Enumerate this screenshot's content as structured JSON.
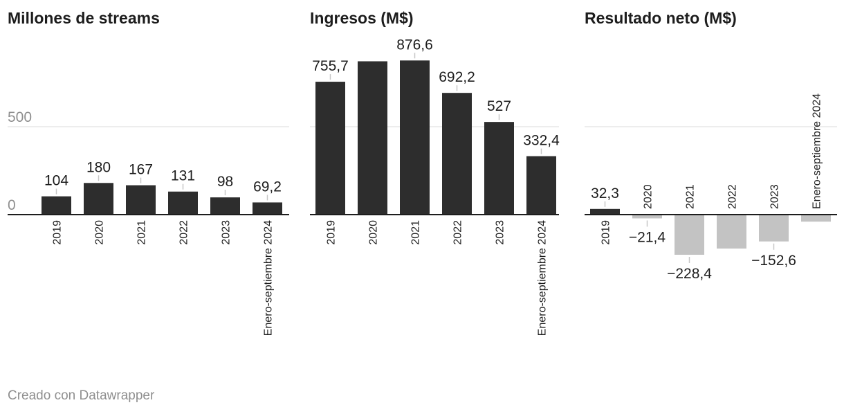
{
  "colors": {
    "bar_dark": "#2d2d2d",
    "bar_negative": "#c3c3c3",
    "gridline": "#e2e2e2",
    "baseline": "#1d1d1d",
    "connector": "#c7c7c7"
  },
  "footer": {
    "credit": "Creado con Datawrapper"
  },
  "chart_data": [
    {
      "type": "bar",
      "title": "Millones de streams",
      "categories": [
        "2019",
        "2020",
        "2021",
        "2022",
        "2023",
        "Enero-septiembre 2024"
      ],
      "values": [
        104,
        180,
        167,
        131,
        98,
        69.2
      ],
      "value_labels": [
        "104",
        "180",
        "167",
        "131",
        "98",
        "69,2"
      ],
      "ylim": [
        0,
        700
      ],
      "y_ticks": [
        0,
        500
      ],
      "y_tick_labels": [
        "0",
        "500"
      ],
      "grid": true
    },
    {
      "type": "bar",
      "title": "Ingresos (M$)",
      "categories": [
        "2019",
        "2020",
        "2021",
        "2022",
        "2023",
        "Enero-septiembre 2024"
      ],
      "values": [
        755.7,
        872,
        876.6,
        692.2,
        527,
        332.4
      ],
      "value_labels": [
        "755,7",
        "",
        "876,6",
        "692,2",
        "527",
        "332,4"
      ],
      "ylim": [
        0,
        1200
      ],
      "y_ticks": [
        0,
        500
      ],
      "grid": true
    },
    {
      "type": "bar",
      "title": "Resultado neto (M$)",
      "categories": [
        "2019",
        "2020",
        "2021",
        "2022",
        "2023",
        "Enero-septiembre 2024"
      ],
      "values": [
        32.3,
        -21.4,
        -228.4,
        -193,
        -152.6,
        -40
      ],
      "value_labels": [
        "32,3",
        "−21,4",
        "−228,4",
        "",
        "−152,6",
        ""
      ],
      "ylim": [
        -1175,
        700
      ],
      "y_ticks": [
        0,
        500
      ],
      "grid": true
    }
  ]
}
